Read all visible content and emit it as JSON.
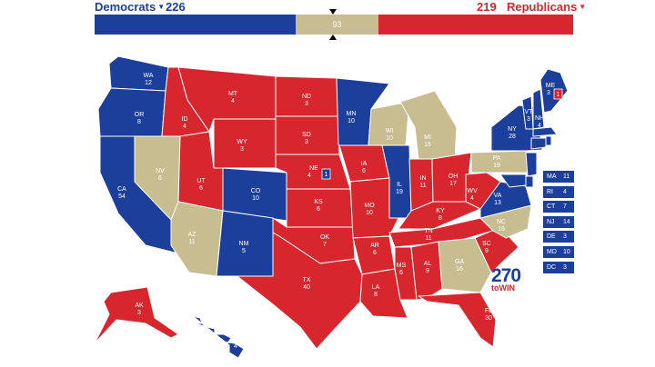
{
  "header": {
    "dem_label": "Democrats",
    "dem_total": "226",
    "rep_total": "219",
    "rep_label": "Republicans",
    "tossup_total": "93"
  },
  "colors": {
    "dem": "#1c3f9c",
    "rep": "#d7262e",
    "tossup": "#c8bc91",
    "border": "#ffffff"
  },
  "bar_shares": {
    "dem": 226,
    "tossup": 93,
    "rep": 219
  },
  "states": [
    {
      "abbr": "WA",
      "ev": "12",
      "party": "dem"
    },
    {
      "abbr": "OR",
      "ev": "8",
      "party": "dem"
    },
    {
      "abbr": "CA",
      "ev": "54",
      "party": "dem"
    },
    {
      "abbr": "NV",
      "ev": "6",
      "party": "tossup"
    },
    {
      "abbr": "ID",
      "ev": "4",
      "party": "rep"
    },
    {
      "abbr": "MT",
      "ev": "4",
      "party": "rep"
    },
    {
      "abbr": "WY",
      "ev": "3",
      "party": "rep"
    },
    {
      "abbr": "UT",
      "ev": "6",
      "party": "rep"
    },
    {
      "abbr": "AZ",
      "ev": "11",
      "party": "tossup"
    },
    {
      "abbr": "CO",
      "ev": "10",
      "party": "dem"
    },
    {
      "abbr": "NM",
      "ev": "5",
      "party": "dem"
    },
    {
      "abbr": "ND",
      "ev": "3",
      "party": "rep"
    },
    {
      "abbr": "SD",
      "ev": "3",
      "party": "rep"
    },
    {
      "abbr": "NE",
      "ev": "4",
      "party": "rep"
    },
    {
      "abbr": "KS",
      "ev": "6",
      "party": "rep"
    },
    {
      "abbr": "OK",
      "ev": "7",
      "party": "rep"
    },
    {
      "abbr": "TX",
      "ev": "40",
      "party": "rep"
    },
    {
      "abbr": "MN",
      "ev": "10",
      "party": "dem"
    },
    {
      "abbr": "IA",
      "ev": "6",
      "party": "rep"
    },
    {
      "abbr": "MO",
      "ev": "10",
      "party": "rep"
    },
    {
      "abbr": "AR",
      "ev": "6",
      "party": "rep"
    },
    {
      "abbr": "LA",
      "ev": "8",
      "party": "rep"
    },
    {
      "abbr": "WI",
      "ev": "10",
      "party": "tossup"
    },
    {
      "abbr": "IL",
      "ev": "19",
      "party": "dem"
    },
    {
      "abbr": "MI",
      "ev": "15",
      "party": "tossup"
    },
    {
      "abbr": "IN",
      "ev": "11",
      "party": "rep"
    },
    {
      "abbr": "OH",
      "ev": "17",
      "party": "rep"
    },
    {
      "abbr": "KY",
      "ev": "8",
      "party": "rep"
    },
    {
      "abbr": "TN",
      "ev": "11",
      "party": "rep"
    },
    {
      "abbr": "MS",
      "ev": "6",
      "party": "rep"
    },
    {
      "abbr": "AL",
      "ev": "9",
      "party": "rep"
    },
    {
      "abbr": "GA",
      "ev": "16",
      "party": "tossup"
    },
    {
      "abbr": "FL",
      "ev": "30",
      "party": "rep"
    },
    {
      "abbr": "SC",
      "ev": "9",
      "party": "rep"
    },
    {
      "abbr": "NC",
      "ev": "16",
      "party": "tossup"
    },
    {
      "abbr": "VA",
      "ev": "13",
      "party": "dem"
    },
    {
      "abbr": "WV",
      "ev": "4",
      "party": "rep"
    },
    {
      "abbr": "PA",
      "ev": "19",
      "party": "tossup"
    },
    {
      "abbr": "NY",
      "ev": "28",
      "party": "dem"
    },
    {
      "abbr": "VT",
      "ev": "3",
      "party": "dem"
    },
    {
      "abbr": "NH",
      "ev": "4",
      "party": "dem"
    },
    {
      "abbr": "ME",
      "ev": "3",
      "party": "dem"
    },
    {
      "abbr": "AK",
      "ev": "3",
      "party": "rep"
    },
    {
      "abbr": "HI",
      "ev": "4",
      "party": "dem"
    }
  ],
  "split_votes": {
    "ne_cd": "1",
    "me_cd": "1"
  },
  "small_states": [
    {
      "abbr": "MA",
      "ev": "11",
      "party": "dem"
    },
    {
      "abbr": "RI",
      "ev": "4",
      "party": "dem"
    },
    {
      "abbr": "CT",
      "ev": "7",
      "party": "dem"
    },
    {
      "abbr": "NJ",
      "ev": "14",
      "party": "dem"
    },
    {
      "abbr": "DE",
      "ev": "3",
      "party": "dem"
    },
    {
      "abbr": "MD",
      "ev": "10",
      "party": "dem"
    },
    {
      "abbr": "DC",
      "ev": "3",
      "party": "dem"
    }
  ],
  "logo": {
    "number": "270",
    "tagline": "toWIN"
  }
}
